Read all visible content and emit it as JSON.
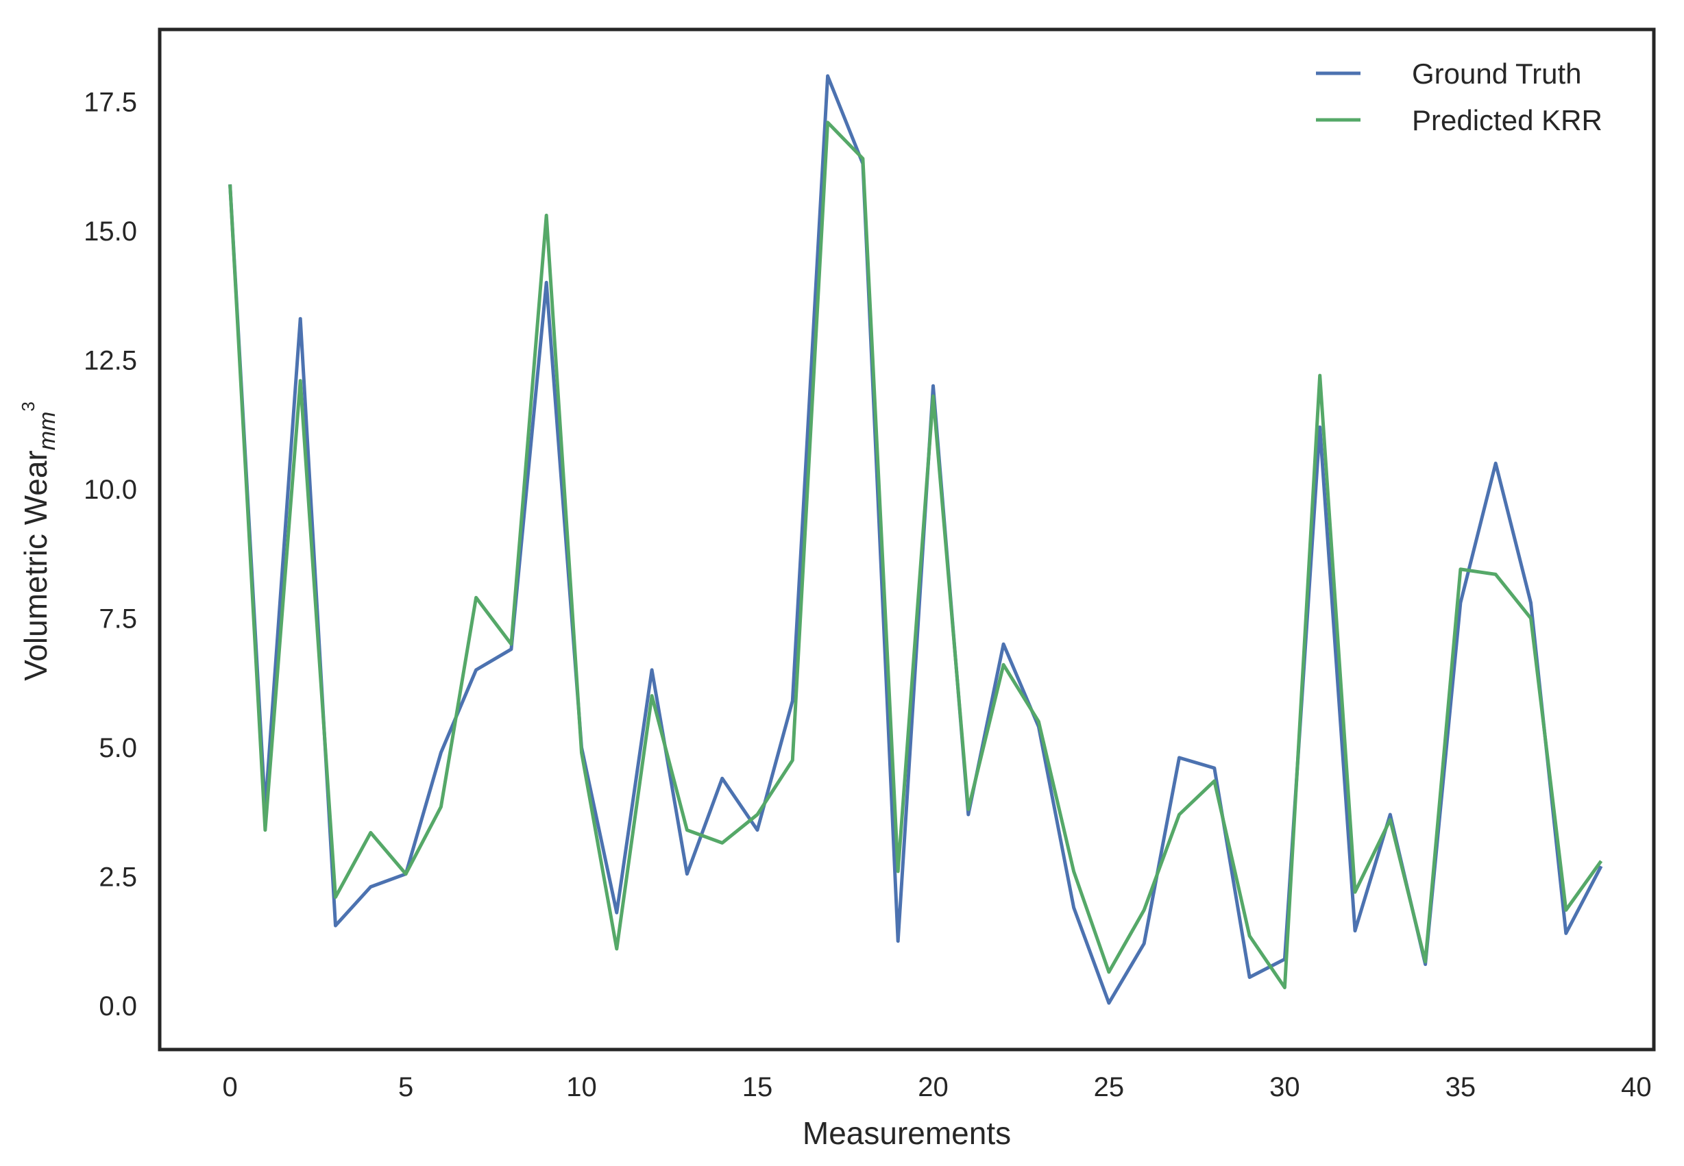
{
  "chart_data": {
    "type": "line",
    "title": "",
    "xlabel": "Measurements",
    "ylabel": "Volumetric Wear",
    "ylabel_subscript": "mm",
    "ylabel_superscript": "3",
    "xlim": [
      -2,
      40.5
    ],
    "ylim": [
      -0.85,
      18.9
    ],
    "xticks": [
      0,
      5,
      10,
      15,
      20,
      25,
      30,
      35,
      40
    ],
    "yticks": [
      0.0,
      2.5,
      5.0,
      7.5,
      10.0,
      12.5,
      15.0,
      17.5
    ],
    "ytick_labels": [
      "0.0",
      "2.5",
      "5.0",
      "7.5",
      "10.0",
      "12.5",
      "15.0",
      "17.5"
    ],
    "xtick_labels": [
      "0",
      "5",
      "10",
      "15",
      "20",
      "25",
      "30",
      "35",
      "40"
    ],
    "grid": false,
    "legend_position": "top-right",
    "x": [
      0,
      1,
      2,
      3,
      4,
      5,
      6,
      7,
      8,
      9,
      10,
      11,
      12,
      13,
      14,
      15,
      16,
      17,
      18,
      19,
      20,
      21,
      22,
      23,
      24,
      25,
      26,
      27,
      28,
      29,
      30,
      31,
      32,
      33,
      34,
      35,
      36,
      37,
      38,
      39
    ],
    "series": [
      {
        "name": "Ground Truth",
        "color": "#4c72b0",
        "values": [
          15.9,
          3.8,
          13.3,
          1.55,
          2.3,
          2.55,
          4.9,
          6.5,
          6.9,
          14.0,
          5.0,
          1.8,
          6.5,
          2.55,
          4.4,
          3.4,
          5.9,
          18.0,
          16.3,
          1.25,
          12.0,
          3.7,
          7.0,
          5.4,
          1.9,
          0.05,
          1.2,
          4.8,
          4.6,
          0.55,
          0.9,
          11.2,
          1.45,
          3.7,
          0.8,
          7.8,
          10.5,
          7.8,
          1.4,
          2.7
        ]
      },
      {
        "name": "Predicted KRR",
        "color": "#55a868",
        "values": [
          15.9,
          3.4,
          12.1,
          2.1,
          3.35,
          2.55,
          3.85,
          7.9,
          7.0,
          15.3,
          4.9,
          1.1,
          6.0,
          3.4,
          3.15,
          3.7,
          4.75,
          17.1,
          16.4,
          2.6,
          11.8,
          3.8,
          6.6,
          5.5,
          2.6,
          0.65,
          1.85,
          3.7,
          4.35,
          1.35,
          0.35,
          12.2,
          2.2,
          3.6,
          0.85,
          8.45,
          8.35,
          7.5,
          1.85,
          2.8
        ]
      }
    ]
  }
}
